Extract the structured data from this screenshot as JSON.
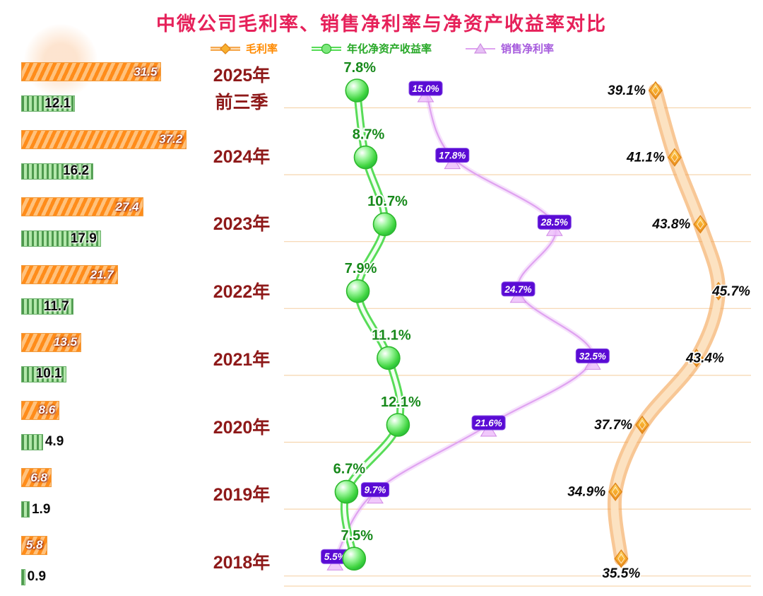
{
  "title": "中微公司毛利率、销售净利率与净资产收益率对比",
  "legend": {
    "items": [
      {
        "label": "毛利率",
        "color": "#ff8a00"
      },
      {
        "label": "年化净资产收益率",
        "color": "#27a827"
      },
      {
        "label": "销售净利率",
        "color": "#a65bdd"
      }
    ]
  },
  "chart_data": {
    "type": "line",
    "orientation": "years-vertical-values-horizontal",
    "grid": true,
    "value_unit": "%",
    "categories": [
      {
        "line1": "2025年",
        "line2": "前三季"
      },
      {
        "line1": "2024年"
      },
      {
        "line1": "2023年"
      },
      {
        "line1": "2022年"
      },
      {
        "line1": "2021年"
      },
      {
        "line1": "2020年"
      },
      {
        "line1": "2019年"
      },
      {
        "line1": "2018年"
      }
    ],
    "series": [
      {
        "name": "毛利率",
        "color": "#f5a84f",
        "marker": "diamond",
        "values": [
          39.1,
          41.1,
          43.8,
          45.7,
          43.4,
          37.7,
          34.9,
          35.5
        ],
        "labels": [
          "39.1%",
          "41.1%",
          "43.8%",
          "45.7%",
          "43.4%",
          "37.7%",
          "34.9%",
          "35.5%"
        ]
      },
      {
        "name": "年化净资产收益率",
        "color": "#33cc33",
        "marker": "circle",
        "values": [
          7.8,
          8.7,
          10.7,
          7.9,
          11.1,
          12.1,
          6.7,
          7.5
        ],
        "labels": [
          "7.8%",
          "8.7%",
          "10.7%",
          "7.9%",
          "11.1%",
          "12.1%",
          "6.7%",
          "7.5%"
        ]
      },
      {
        "name": "销售净利率",
        "color": "#5a0bd4",
        "marker": "triangle",
        "values": [
          15.0,
          17.8,
          28.5,
          24.7,
          32.5,
          21.6,
          9.7,
          5.5
        ],
        "labels": [
          "15.0%",
          "17.8%",
          "28.5%",
          "24.7%",
          "32.5%",
          "21.6%",
          "9.7%",
          "5.5%"
        ]
      }
    ],
    "left_bars": {
      "orange": {
        "values": [
          31.5,
          37.2,
          27.4,
          21.7,
          13.5,
          8.6,
          6.8,
          5.8
        ],
        "labels": [
          "31.5",
          "37.2",
          "27.4",
          "21.7",
          "13.5",
          "8.6",
          "6.8",
          "5.8"
        ]
      },
      "green": {
        "values": [
          12.1,
          16.2,
          17.9,
          11.7,
          10.1,
          4.9,
          1.9,
          0.9
        ],
        "labels": [
          "12.1",
          "16.2",
          "17.9",
          "11.7",
          "10.1",
          "4.9",
          "1.9",
          "0.9"
        ]
      }
    }
  }
}
